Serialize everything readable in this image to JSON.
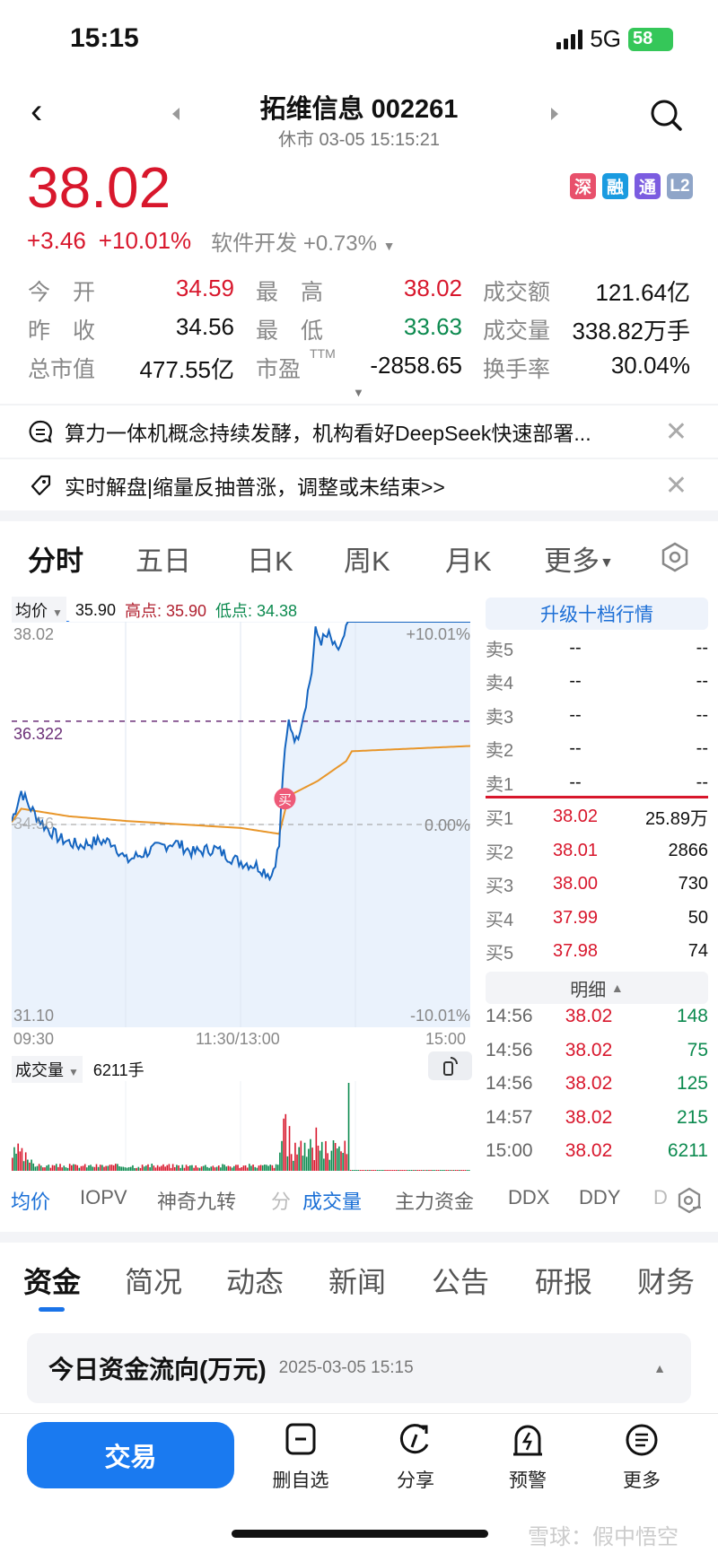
{
  "status_bar": {
    "time": "15:15",
    "network": "5G",
    "battery": "58"
  },
  "header": {
    "title": "拓维信息 002261",
    "subtitle": "休市 03-05 15:15:21"
  },
  "quote": {
    "price": "38.02",
    "change": "+3.46",
    "change_pct": "+10.01%",
    "sector": "软件开发",
    "sector_pct": "+0.73%",
    "badges": [
      {
        "label": "深",
        "color": "#e8506b"
      },
      {
        "label": "融",
        "color": "#1a9be0"
      },
      {
        "label": "通",
        "color": "#7b5ce0"
      },
      {
        "label": "L2",
        "color": "#8fa5c8"
      }
    ]
  },
  "stats": [
    [
      {
        "label": "今　开",
        "value": "34.59",
        "color": "red"
      },
      {
        "label": "最　高",
        "value": "38.02",
        "color": "red"
      },
      {
        "label": "成交额",
        "value": "121.64亿",
        "color": "black"
      }
    ],
    [
      {
        "label": "昨　收",
        "value": "34.56",
        "color": "black"
      },
      {
        "label": "最　低",
        "value": "33.63",
        "color": "green"
      },
      {
        "label": "成交量",
        "value": "338.82万手",
        "color": "black"
      }
    ],
    [
      {
        "label": "总市值",
        "value": "477.55亿",
        "color": "black"
      },
      {
        "label": "市盈",
        "sup": "TTM",
        "value": "-2858.65",
        "color": "black"
      },
      {
        "label": "换手率",
        "value": "30.04%",
        "color": "black"
      }
    ]
  ],
  "news": [
    {
      "icon": "chat-icon",
      "text": "算力一体机概念持续发酵，机构看好DeepSeek快速部署..."
    },
    {
      "icon": "tag-icon",
      "text": "实时解盘|缩量反抽普涨，调整或未结束>>"
    }
  ],
  "chart_tabs": [
    "分时",
    "五日",
    "日K",
    "周K",
    "月K",
    "更多"
  ],
  "chart_head": {
    "avg_label": "均价",
    "avg_value": "35.90",
    "high_label": "高点: 35.90",
    "low_label": "低点: 34.38"
  },
  "chart_data": {
    "type": "line",
    "ylim": [
      31.1,
      38.02
    ],
    "y_labels_left": [
      "38.02",
      "36.322",
      "34.56",
      "31.10"
    ],
    "y_labels_right": [
      "+10.01%",
      "0.00%",
      "-10.01%"
    ],
    "x_labels": [
      "09:30",
      "11:30/13:00",
      "15:00"
    ],
    "prev_close": 34.56,
    "reference_line": 36.322,
    "price": {
      "times": [
        "09:30",
        "09:35",
        "09:39",
        "09:47",
        "09:55",
        "10:05",
        "10:16",
        "10:23",
        "10:30",
        "10:42",
        "10:55",
        "11:05",
        "11:16",
        "11:28",
        "13:08",
        "13:16",
        "13:20",
        "13:22",
        "13:25",
        "13:29",
        "13:33",
        "13:37",
        "13:39",
        "13:42",
        "13:46",
        "13:50",
        "13:54",
        "13:56",
        "15:00"
      ],
      "values": [
        34.62,
        35.13,
        34.88,
        34.54,
        34.32,
        34.2,
        34.28,
        34.26,
        33.94,
        34.11,
        34.26,
        34.08,
        34.15,
        33.94,
        33.86,
        33.69,
        34.2,
        35.47,
        36.32,
        35.98,
        36.49,
        37.17,
        37.85,
        37.7,
        37.78,
        37.51,
        37.72,
        38.02,
        38.02
      ]
    },
    "avg_price": {
      "times": [
        "09:30",
        "09:35",
        "10:00",
        "10:30",
        "11:30",
        "13:20",
        "13:25",
        "13:40",
        "13:55",
        "13:58",
        "15:00"
      ],
      "values": [
        34.6,
        34.83,
        34.7,
        34.62,
        34.5,
        34.4,
        35.05,
        35.3,
        35.64,
        35.81,
        35.9
      ]
    },
    "buy_marker": {
      "label": "买",
      "time": "13:23"
    },
    "colors": {
      "price": "#1565c0",
      "avg": "#e8962a",
      "fill": "#eaf2fc",
      "up": "#d8172c",
      "down": "#0c8a4f"
    }
  },
  "volume": {
    "label": "成交量",
    "value": "6211手"
  },
  "order_book": {
    "upgrade": "升级十档行情",
    "asks": [
      {
        "label": "卖5",
        "price": "--",
        "vol": "--"
      },
      {
        "label": "卖4",
        "price": "--",
        "vol": "--"
      },
      {
        "label": "卖3",
        "price": "--",
        "vol": "--"
      },
      {
        "label": "卖2",
        "price": "--",
        "vol": "--"
      },
      {
        "label": "卖1",
        "price": "--",
        "vol": "--"
      }
    ],
    "bids": [
      {
        "label": "买1",
        "price": "38.02",
        "vol": "25.89万"
      },
      {
        "label": "买2",
        "price": "38.01",
        "vol": "2866"
      },
      {
        "label": "买3",
        "price": "38.00",
        "vol": "730"
      },
      {
        "label": "买4",
        "price": "37.99",
        "vol": "50"
      },
      {
        "label": "买5",
        "price": "37.98",
        "vol": "74"
      }
    ],
    "detail_label": "明细",
    "ticks": [
      {
        "time": "14:56",
        "price": "38.02",
        "vol": "148"
      },
      {
        "time": "14:56",
        "price": "38.02",
        "vol": "75"
      },
      {
        "time": "14:56",
        "price": "38.02",
        "vol": "125"
      },
      {
        "time": "14:57",
        "price": "38.02",
        "vol": "215"
      },
      {
        "time": "15:00",
        "price": "38.02",
        "vol": "6211"
      }
    ]
  },
  "indicators": [
    "均价",
    "IOPV",
    "神奇九转",
    "分",
    "成交量",
    "主力资金",
    "DDX",
    "DDY",
    "D"
  ],
  "bottom_tabs": [
    "资金",
    "简况",
    "动态",
    "新闻",
    "公告",
    "研报",
    "财务"
  ],
  "fund_flow": {
    "title": "今日资金流向(万元)",
    "time": "2025-03-05 15:15"
  },
  "toolbar": {
    "trade": "交易",
    "items": [
      {
        "icon": "remove-watchlist-icon",
        "label": "删自选"
      },
      {
        "icon": "share-icon",
        "label": "分享"
      },
      {
        "icon": "alert-icon",
        "label": "预警"
      },
      {
        "icon": "more-icon",
        "label": "更多"
      }
    ]
  },
  "watermark": "雪球：假中悟空"
}
